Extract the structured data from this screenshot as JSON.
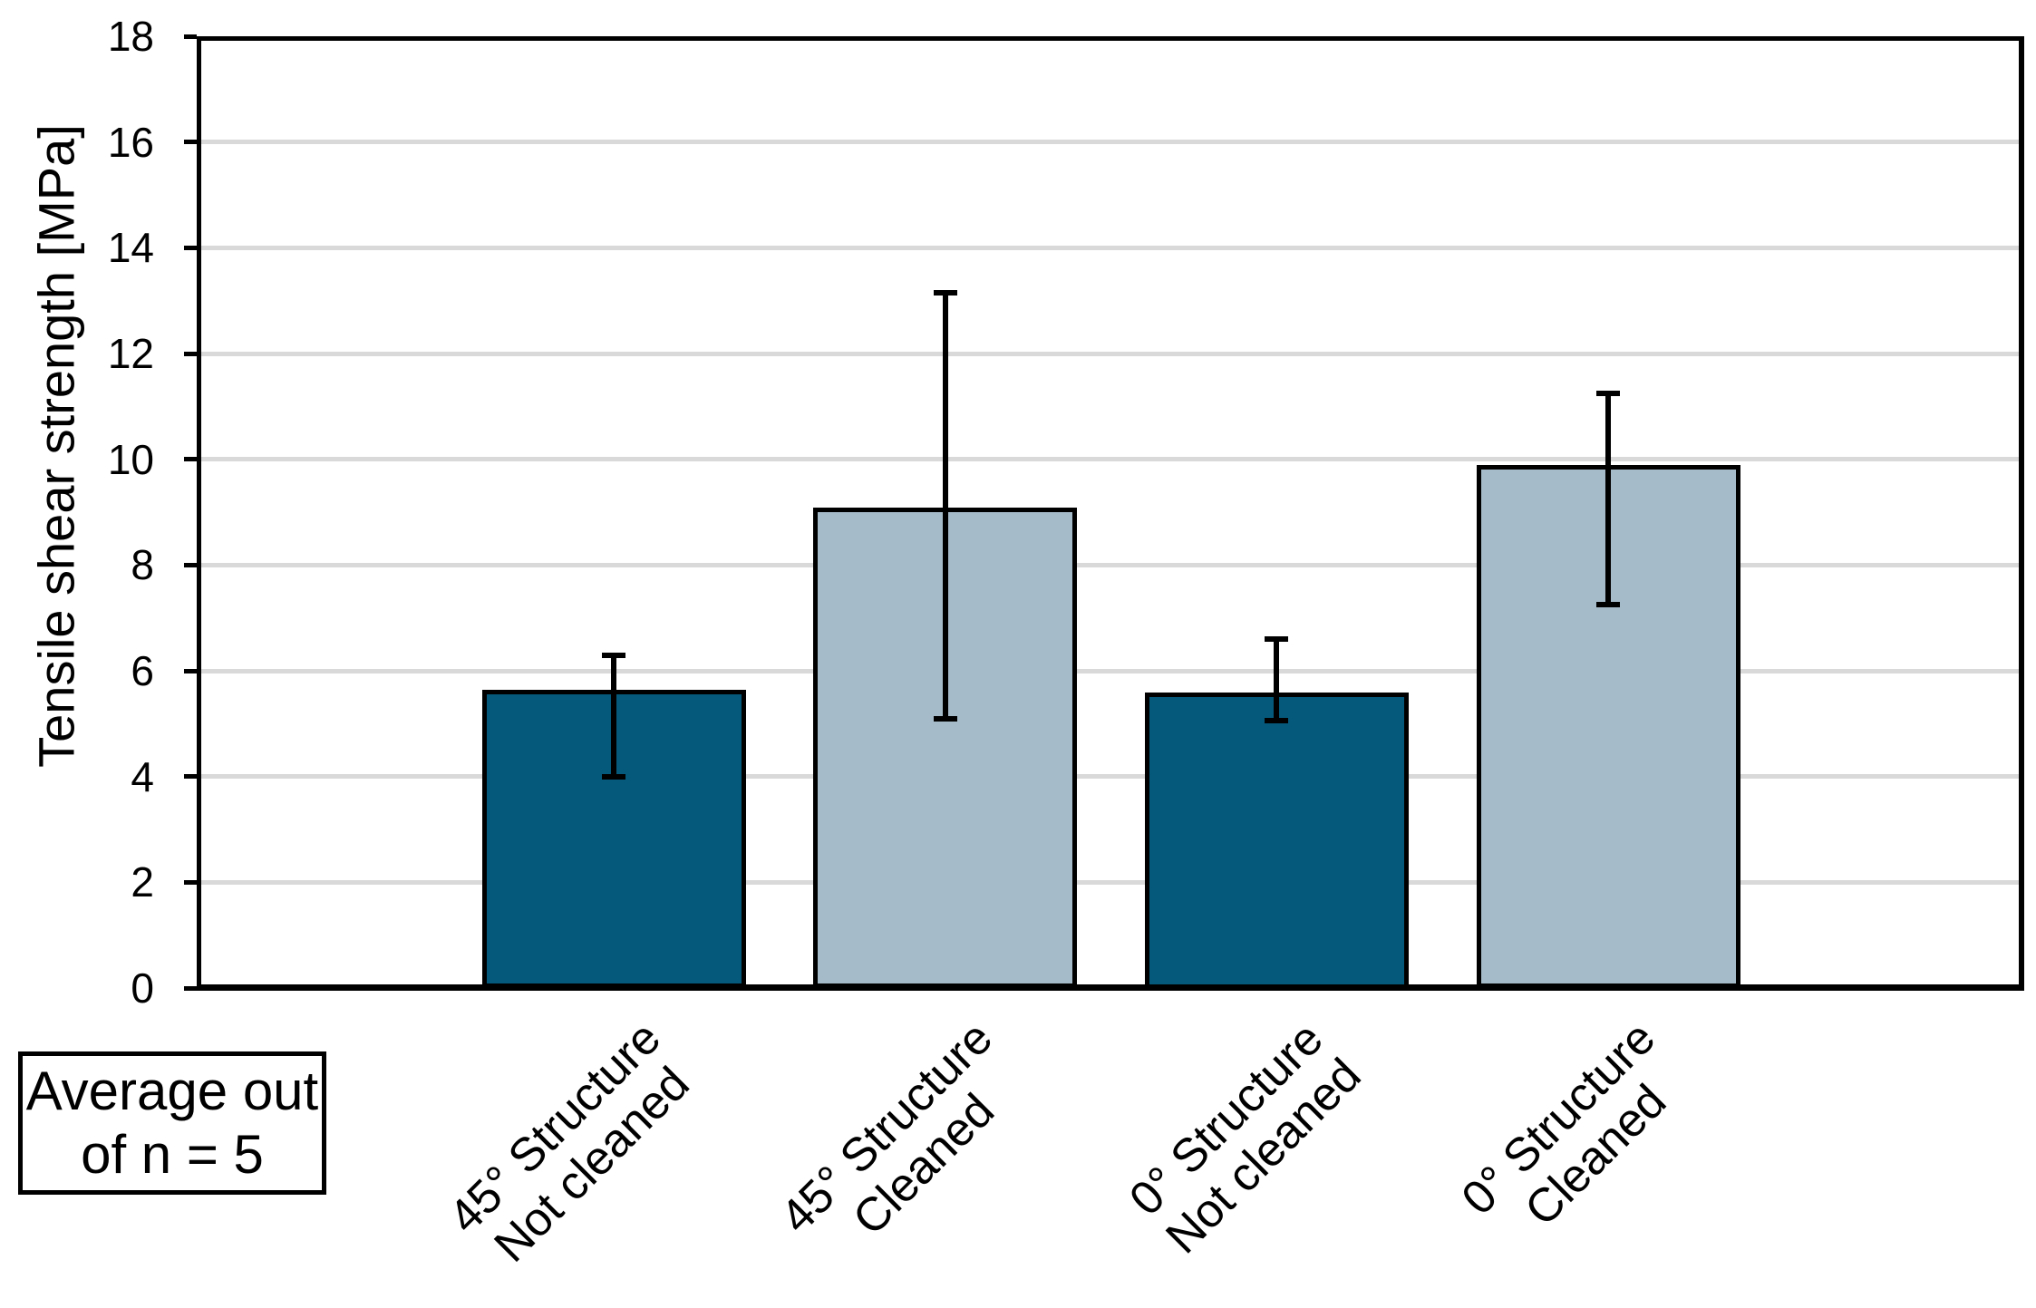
{
  "chart_data": {
    "type": "bar",
    "title": "",
    "xlabel": "",
    "ylabel": "Tensile shear strength [MPa]",
    "ylim": [
      0,
      18
    ],
    "ytick_step": 2,
    "yticks": [
      0,
      2,
      4,
      6,
      8,
      10,
      12,
      14,
      16,
      18
    ],
    "grid": true,
    "legend": "none",
    "annotation": {
      "line1": "Average out",
      "line2": "of n = 5"
    },
    "colors": {
      "dark_bar": "#05597B",
      "light_bar": "#A6BBC9",
      "gridline": "#D9D9D9",
      "axis": "#000000"
    },
    "categories": [
      "45° Structure Not cleaned",
      "45° Structure Cleaned",
      "0° Structure Not cleaned",
      "0° Structure Cleaned"
    ],
    "bars": [
      {
        "label_lines": [
          "45° Structure",
          "Not cleaned"
        ],
        "value": 5.6,
        "error_low": 4.0,
        "error_high": 6.3,
        "fill": "#05597B"
      },
      {
        "label_lines": [
          "45° Structure",
          "Cleaned"
        ],
        "value": 9.05,
        "error_low": 5.1,
        "error_high": 13.15,
        "fill": "#A6BBC9"
      },
      {
        "label_lines": [
          "0° Structure",
          "Not cleaned"
        ],
        "value": 5.55,
        "error_low": 5.05,
        "error_high": 6.6,
        "fill": "#05597B"
      },
      {
        "label_lines": [
          "0° Structure",
          "Cleaned"
        ],
        "value": 9.85,
        "error_low": 7.25,
        "error_high": 11.25,
        "fill": "#A6BBC9"
      }
    ]
  }
}
